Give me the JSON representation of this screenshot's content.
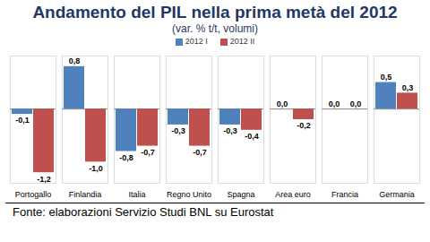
{
  "chart_data": {
    "type": "bar",
    "title": "Andamento del PIL nella prima metà del 2012",
    "subtitle": "(var. % t/t, volumi)",
    "caption": "Fonte: elaborazioni Servizio Studi BNL su Eurostat",
    "categories": [
      "Portogallo",
      "Finlandia",
      "Italia",
      "Regno Unito",
      "Spagna",
      "Area euro",
      "Francia",
      "Germania"
    ],
    "series": [
      {
        "name": "2012 I",
        "color": "#4f81bd",
        "values": [
          -0.1,
          0.8,
          -0.8,
          -0.3,
          -0.3,
          0.0,
          0.0,
          0.5
        ],
        "value_labels": [
          "-0,1",
          "0,8",
          "-0,8",
          "-0,3",
          "-0,3",
          "0,0",
          "0,0",
          "0,5"
        ]
      },
      {
        "name": "2012 II",
        "color": "#c0504d",
        "values": [
          -1.2,
          -1.0,
          -0.7,
          -0.7,
          -0.4,
          -0.2,
          0.0,
          0.3
        ],
        "value_labels": [
          "-1,2",
          "-1,0",
          "-0,7",
          "-0,7",
          "-0,4",
          "-0,2",
          "0,0",
          "0,3"
        ]
      }
    ],
    "ylim": [
      -1.4,
      1.0
    ],
    "yticks": [
      0
    ],
    "tick_labels": "x",
    "data_labels": true,
    "legend": "top"
  }
}
